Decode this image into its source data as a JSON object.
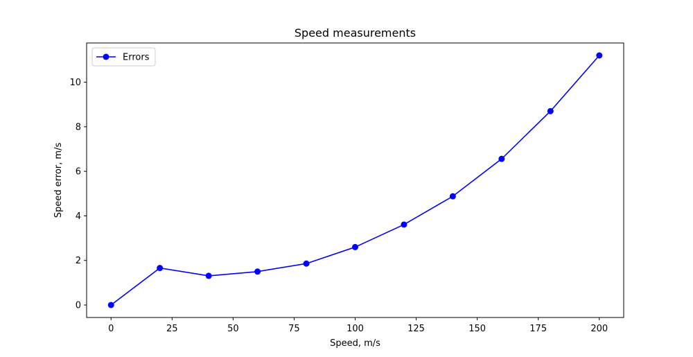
{
  "chart_data": {
    "type": "line",
    "title": "Speed measurements",
    "xlabel": "Speed, m/s",
    "ylabel": "Speed error, m/s",
    "xlim": [
      -10,
      210
    ],
    "ylim": [
      -0.56,
      11.76
    ],
    "xticks": [
      0,
      25,
      50,
      75,
      100,
      125,
      150,
      175,
      200
    ],
    "yticks": [
      0,
      2,
      4,
      6,
      8,
      10
    ],
    "xtick_labels": [
      "0",
      "25",
      "50",
      "75",
      "100",
      "125",
      "150",
      "175",
      "200"
    ],
    "ytick_labels": [
      "0",
      "2",
      "4",
      "6",
      "8",
      "10"
    ],
    "grid": false,
    "legend_position": "upper-left",
    "series": [
      {
        "name": "Errors",
        "color": "#0000ff",
        "marker": "circle",
        "x": [
          0,
          20,
          40,
          60,
          80,
          100,
          120,
          140,
          160,
          180,
          200
        ],
        "y": [
          0.0,
          1.66,
          1.31,
          1.5,
          1.86,
          2.6,
          3.61,
          4.88,
          6.56,
          8.7,
          11.2
        ]
      }
    ]
  }
}
